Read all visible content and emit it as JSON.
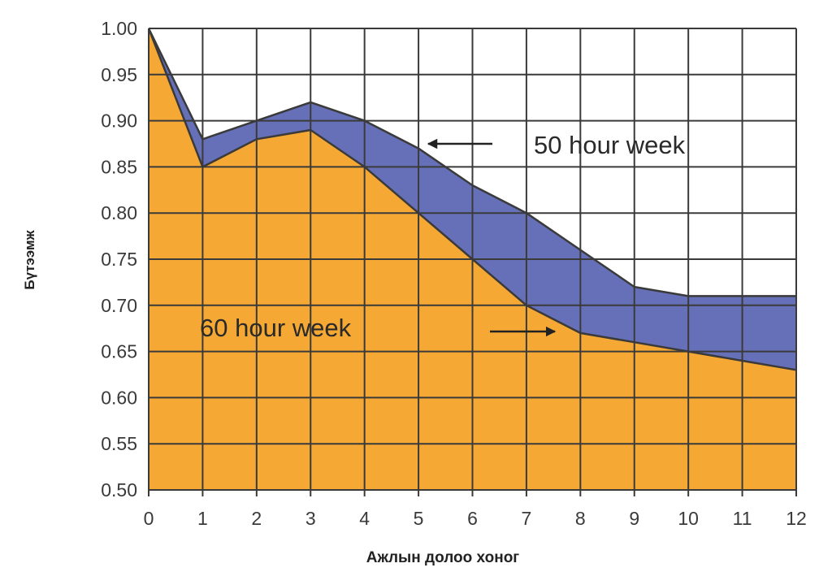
{
  "chart_data": {
    "type": "area",
    "x": [
      0,
      1,
      2,
      3,
      4,
      5,
      6,
      7,
      8,
      9,
      10,
      11,
      12
    ],
    "series": [
      {
        "name": "50 hour week",
        "values": [
          1.0,
          0.88,
          0.9,
          0.92,
          0.9,
          0.87,
          0.83,
          0.8,
          0.76,
          0.72,
          0.71,
          0.71,
          0.71
        ],
        "color": "#6670b8"
      },
      {
        "name": "60 hour week",
        "values": [
          1.0,
          0.85,
          0.88,
          0.89,
          0.85,
          0.8,
          0.75,
          0.7,
          0.67,
          0.66,
          0.65,
          0.64,
          0.63
        ],
        "color": "#f5a833"
      }
    ],
    "xlabel": "Ажлын долоо хоног",
    "ylabel": "Бүтээмж",
    "xlim": [
      0,
      12
    ],
    "ylim": [
      0.5,
      1.0
    ],
    "x_ticks": [
      "0",
      "1",
      "2",
      "3",
      "4",
      "5",
      "6",
      "7",
      "8",
      "9",
      "10",
      "11",
      "12"
    ],
    "y_ticks": [
      "0.50",
      "0.55",
      "0.60",
      "0.65",
      "0.70",
      "0.75",
      "0.80",
      "0.85",
      "0.90",
      "0.95",
      "1.00"
    ],
    "grid": true,
    "annotations": [
      {
        "text": "50 hour week",
        "series": "50 hour week",
        "arrow_direction": "left"
      },
      {
        "text": "60 hour week",
        "series": "60 hour week",
        "arrow_direction": "right"
      }
    ],
    "colors": {
      "grid": "#3a3a3a",
      "outline": "#3a3a3a"
    }
  }
}
